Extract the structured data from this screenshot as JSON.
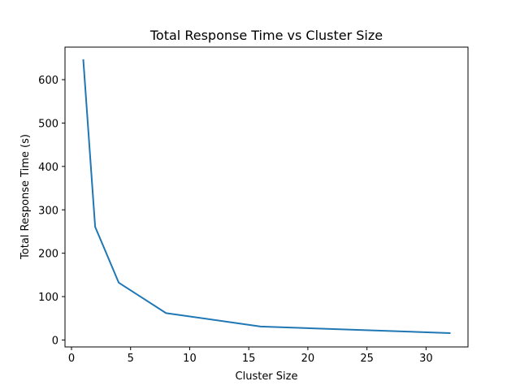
{
  "chart_data": {
    "type": "line",
    "title": "Total Response Time vs Cluster Size",
    "xlabel": "Cluster Size",
    "ylabel": "Total Response Time (s)",
    "xlim": [
      -0.55,
      33.55
    ],
    "ylim": [
      -16,
      675
    ],
    "xticks": [
      0,
      5,
      10,
      15,
      20,
      25,
      30
    ],
    "xtick_labels": [
      "0",
      "5",
      "10",
      "15",
      "20",
      "25",
      "30"
    ],
    "yticks": [
      0,
      100,
      200,
      300,
      400,
      500,
      600
    ],
    "ytick_labels": [
      "0",
      "100",
      "200",
      "300",
      "400",
      "500",
      "600"
    ],
    "grid": false,
    "legend": "none",
    "series": [
      {
        "color": "#1f77b4",
        "x": [
          1,
          2,
          4,
          8,
          16,
          32
        ],
        "y": [
          645,
          261,
          132,
          62,
          31,
          16
        ]
      }
    ]
  }
}
